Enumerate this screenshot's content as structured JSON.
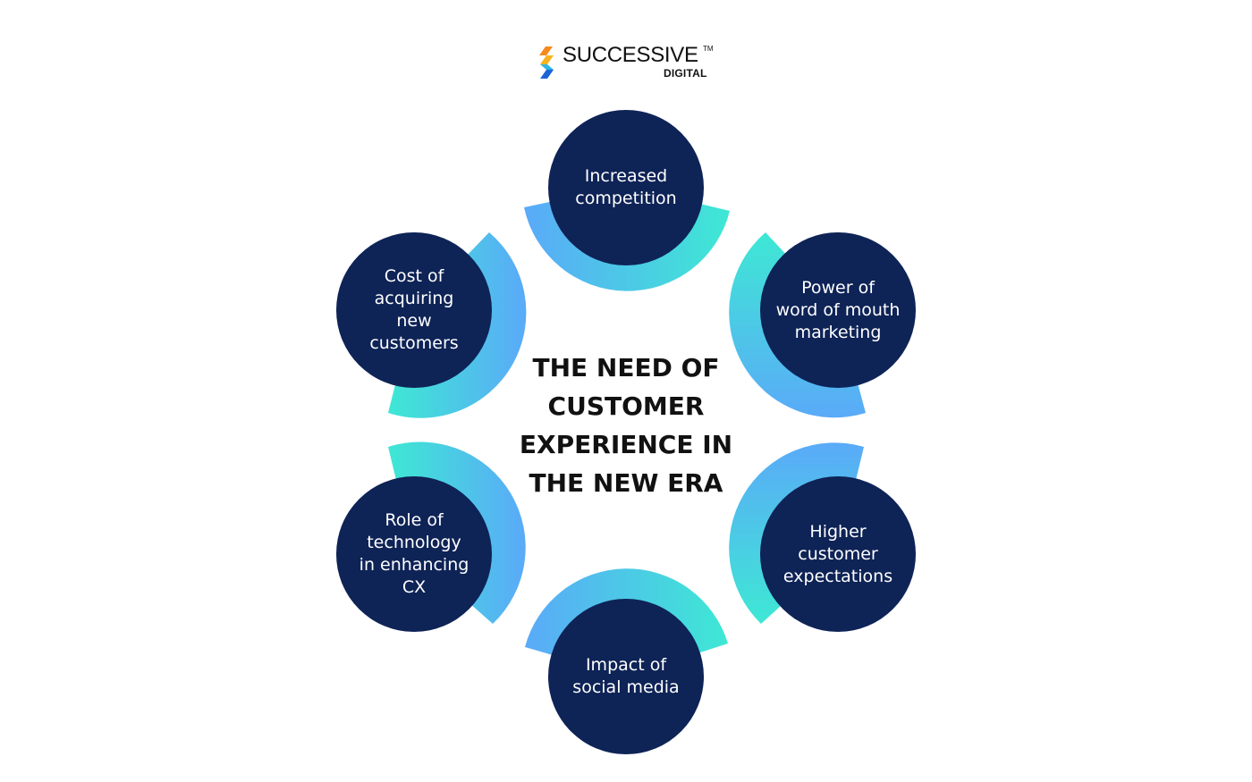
{
  "logo": {
    "wordmark": "SUCCESSIVE",
    "trademark": "TM",
    "subtitle": "DIGITAL"
  },
  "center_title": "THE NEED OF\nCUSTOMER\nEXPERIENCE IN\nTHE NEW ERA",
  "nodes": [
    {
      "label": "Increased\ncompetition"
    },
    {
      "label": "Power of\nword of mouth\nmarketing"
    },
    {
      "label": "Higher\ncustomer\nexpectations"
    },
    {
      "label": "Impact of\nsocial media"
    },
    {
      "label": "Role of\ntechnology\nin enhancing\nCX"
    },
    {
      "label": "Cost of\nacquiring\nnew\ncustomers"
    }
  ],
  "colors": {
    "node_fill": "#0e2356",
    "arc_blue": "#5aaaf8",
    "arc_teal": "#3ee8d4",
    "logo_orange": "#f58a1f",
    "logo_blue": "#1b64d8"
  }
}
